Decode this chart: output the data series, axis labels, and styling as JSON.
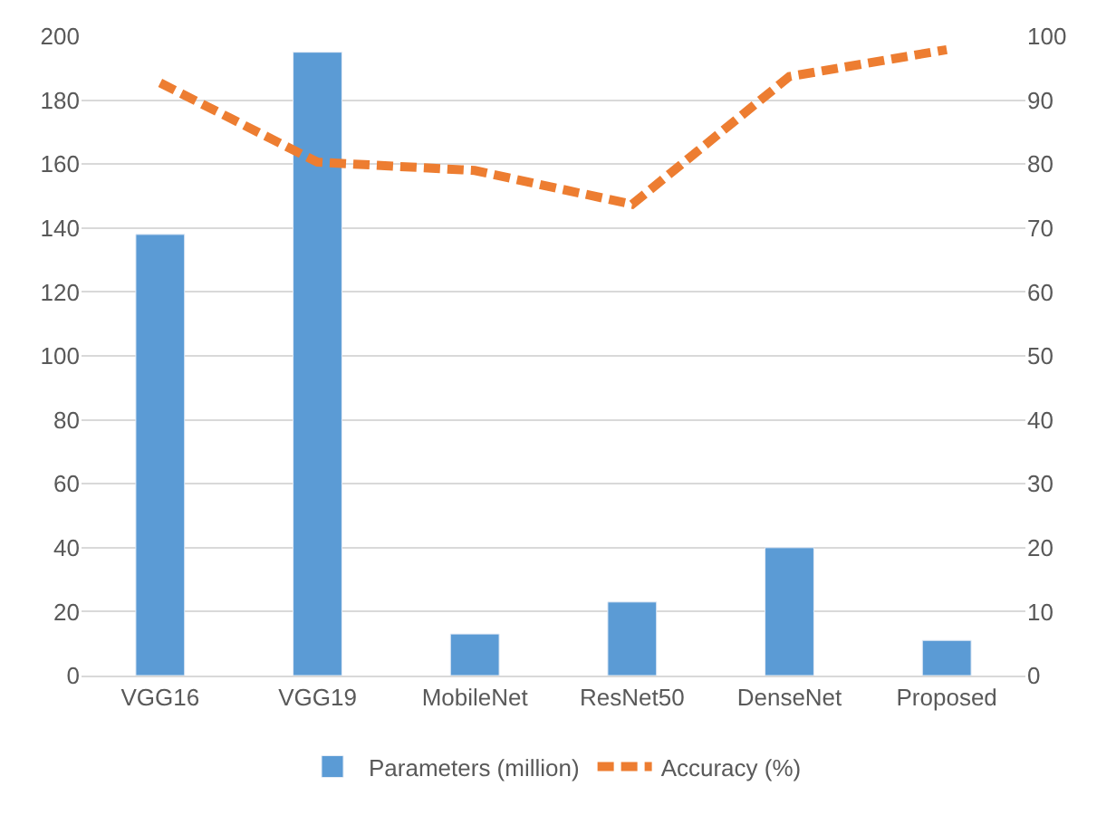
{
  "chart_data": {
    "type": "bar",
    "categories": [
      "VGG16",
      "VGG19",
      "MobileNet",
      "ResNet50",
      "DenseNet",
      "Proposed"
    ],
    "series": [
      {
        "name": "Parameters (million)",
        "color": "#5b9bd5",
        "values": [
          138,
          195,
          13,
          23,
          40,
          11
        ]
      },
      {
        "name": "Accuracy (%)",
        "color": "#ed7d31",
        "type": "line",
        "axis": "y2",
        "line_style": "dashed",
        "values": [
          92.7,
          80.3,
          79,
          73.7,
          93.7,
          97.9
        ]
      }
    ],
    "ylim": [
      0,
      200
    ],
    "yticks": [
      0,
      20,
      40,
      60,
      80,
      100,
      120,
      140,
      160,
      180,
      200
    ],
    "y2lim": [
      0,
      100
    ],
    "y2ticks": [
      0,
      10,
      20,
      30,
      40,
      50,
      60,
      70,
      80,
      90,
      100
    ],
    "grid": "y",
    "legend": "bottom"
  }
}
